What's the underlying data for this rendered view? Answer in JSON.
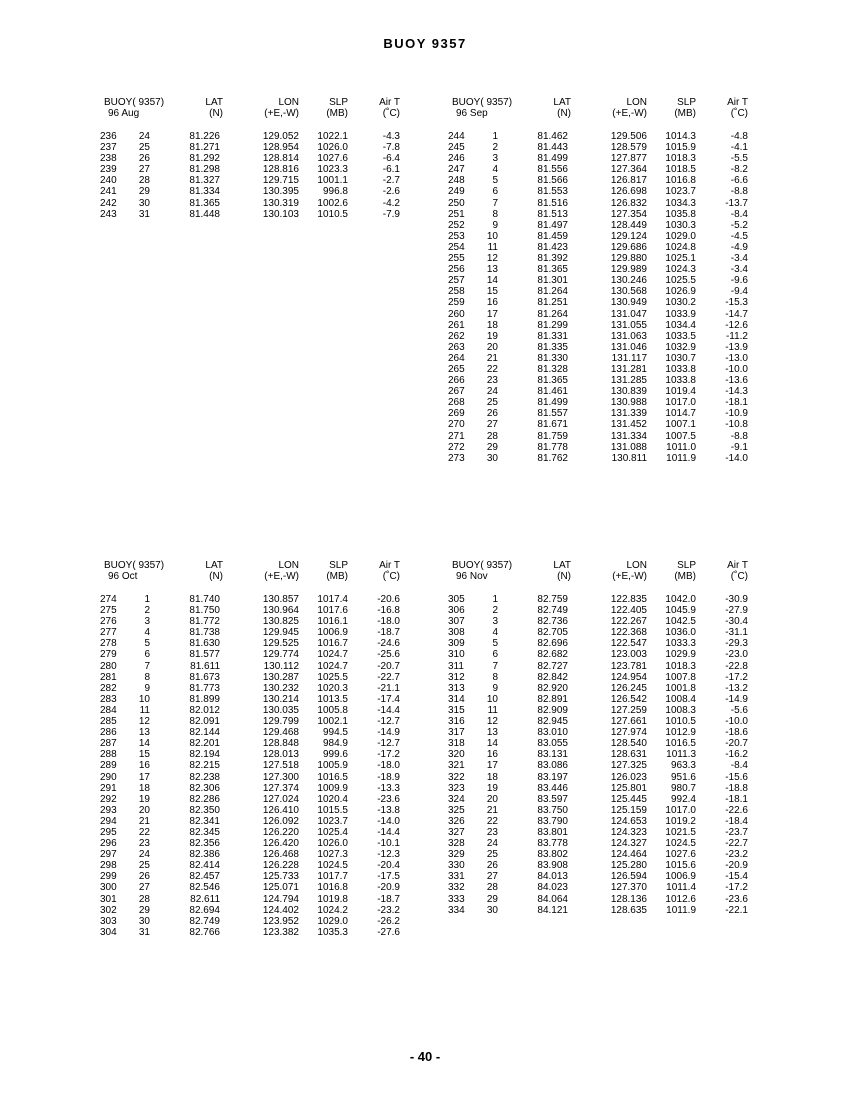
{
  "title": "BUOY 9357",
  "page_number": "- 40 -",
  "headers": {
    "buoy": "BUOY( 9357)",
    "lat": "LAT",
    "lat_unit": "(N)",
    "lon": "LON",
    "lon_unit": "(+E,-W)",
    "slp": "SLP",
    "slp_unit": "(MB)",
    "airt": "Air T",
    "airt_unit": "(˚C)"
  },
  "tables": [
    {
      "period": "96 Aug",
      "rows": [
        [
          "236",
          "24",
          "81.226",
          "129.052",
          "1022.1",
          "-4.3"
        ],
        [
          "237",
          "25",
          "81.271",
          "128.954",
          "1026.0",
          "-7.8"
        ],
        [
          "238",
          "26",
          "81.292",
          "128.814",
          "1027.6",
          "-6.4"
        ],
        [
          "239",
          "27",
          "81.298",
          "128.816",
          "1023.3",
          "-6.1"
        ],
        [
          "240",
          "28",
          "81.327",
          "129.715",
          "1001.1",
          "-2.7"
        ],
        [
          "241",
          "29",
          "81.334",
          "130.395",
          "996.8",
          "-2.6"
        ],
        [
          "242",
          "30",
          "81.365",
          "130.319",
          "1002.6",
          "-4.2"
        ],
        [
          "243",
          "31",
          "81.448",
          "130.103",
          "1010.5",
          "-7.9"
        ]
      ]
    },
    {
      "period": "96 Sep",
      "rows": [
        [
          "244",
          "1",
          "81.462",
          "129.506",
          "1014.3",
          "-4.8"
        ],
        [
          "245",
          "2",
          "81.443",
          "128.579",
          "1015.9",
          "-4.1"
        ],
        [
          "246",
          "3",
          "81.499",
          "127.877",
          "1018.3",
          "-5.5"
        ],
        [
          "247",
          "4",
          "81.556",
          "127.364",
          "1018.5",
          "-8.2"
        ],
        [
          "248",
          "5",
          "81.566",
          "126.817",
          "1016.8",
          "-6.6"
        ],
        [
          "249",
          "6",
          "81.553",
          "126.698",
          "1023.7",
          "-8.8"
        ],
        [
          "250",
          "7",
          "81.516",
          "126.832",
          "1034.3",
          "-13.7"
        ],
        [
          "251",
          "8",
          "81.513",
          "127.354",
          "1035.8",
          "-8.4"
        ],
        [
          "252",
          "9",
          "81.497",
          "128.449",
          "1030.3",
          "-5.2"
        ],
        [
          "253",
          "10",
          "81.459",
          "129.124",
          "1029.0",
          "-4.5"
        ],
        [
          "254",
          "11",
          "81.423",
          "129.686",
          "1024.8",
          "-4.9"
        ],
        [
          "255",
          "12",
          "81.392",
          "129.880",
          "1025.1",
          "-3.4"
        ],
        [
          "256",
          "13",
          "81.365",
          "129.989",
          "1024.3",
          "-3.4"
        ],
        [
          "257",
          "14",
          "81.301",
          "130.246",
          "1025.5",
          "-9.6"
        ],
        [
          "258",
          "15",
          "81.264",
          "130.568",
          "1026.9",
          "-9.4"
        ],
        [
          "259",
          "16",
          "81.251",
          "130.949",
          "1030.2",
          "-15.3"
        ],
        [
          "260",
          "17",
          "81.264",
          "131.047",
          "1033.9",
          "-14.7"
        ],
        [
          "261",
          "18",
          "81.299",
          "131.055",
          "1034.4",
          "-12.6"
        ],
        [
          "262",
          "19",
          "81.331",
          "131.063",
          "1033.5",
          "-11.2"
        ],
        [
          "263",
          "20",
          "81.335",
          "131.046",
          "1032.9",
          "-13.9"
        ],
        [
          "264",
          "21",
          "81.330",
          "131.117",
          "1030.7",
          "-13.0"
        ],
        [
          "265",
          "22",
          "81.328",
          "131.281",
          "1033.8",
          "-10.0"
        ],
        [
          "266",
          "23",
          "81.365",
          "131.285",
          "1033.8",
          "-13.6"
        ],
        [
          "267",
          "24",
          "81.461",
          "130.839",
          "1019.4",
          "-14.3"
        ],
        [
          "268",
          "25",
          "81.499",
          "130.988",
          "1017.0",
          "-18.1"
        ],
        [
          "269",
          "26",
          "81.557",
          "131.339",
          "1014.7",
          "-10.9"
        ],
        [
          "270",
          "27",
          "81.671",
          "131.452",
          "1007.1",
          "-10.8"
        ],
        [
          "271",
          "28",
          "81.759",
          "131.334",
          "1007.5",
          "-8.8"
        ],
        [
          "272",
          "29",
          "81.778",
          "131.088",
          "1011.0",
          "-9.1"
        ],
        [
          "273",
          "30",
          "81.762",
          "130.811",
          "1011.9",
          "-14.0"
        ]
      ]
    },
    {
      "period": "96 Oct",
      "rows": [
        [
          "274",
          "1",
          "81.740",
          "130.857",
          "1017.4",
          "-20.6"
        ],
        [
          "275",
          "2",
          "81.750",
          "130.964",
          "1017.6",
          "-16.8"
        ],
        [
          "276",
          "3",
          "81.772",
          "130.825",
          "1016.1",
          "-18.0"
        ],
        [
          "277",
          "4",
          "81.738",
          "129.945",
          "1006.9",
          "-18.7"
        ],
        [
          "278",
          "5",
          "81.630",
          "129.525",
          "1016.7",
          "-24.6"
        ],
        [
          "279",
          "6",
          "81.577",
          "129.774",
          "1024.7",
          "-25.6"
        ],
        [
          "280",
          "7",
          "81.611",
          "130.112",
          "1024.7",
          "-20.7"
        ],
        [
          "281",
          "8",
          "81.673",
          "130.287",
          "1025.5",
          "-22.7"
        ],
        [
          "282",
          "9",
          "81.773",
          "130.232",
          "1020.3",
          "-21.1"
        ],
        [
          "283",
          "10",
          "81.899",
          "130.214",
          "1013.5",
          "-17.4"
        ],
        [
          "284",
          "11",
          "82.012",
          "130.035",
          "1005.8",
          "-14.4"
        ],
        [
          "285",
          "12",
          "82.091",
          "129.799",
          "1002.1",
          "-12.7"
        ],
        [
          "286",
          "13",
          "82.144",
          "129.468",
          "994.5",
          "-14.9"
        ],
        [
          "287",
          "14",
          "82.201",
          "128.848",
          "984.9",
          "-12.7"
        ],
        [
          "288",
          "15",
          "82.194",
          "128.013",
          "999.6",
          "-17.2"
        ],
        [
          "289",
          "16",
          "82.215",
          "127.518",
          "1005.9",
          "-18.0"
        ],
        [
          "290",
          "17",
          "82.238",
          "127.300",
          "1016.5",
          "-18.9"
        ],
        [
          "291",
          "18",
          "82.306",
          "127.374",
          "1009.9",
          "-13.3"
        ],
        [
          "292",
          "19",
          "82.286",
          "127.024",
          "1020.4",
          "-23.6"
        ],
        [
          "293",
          "20",
          "82.350",
          "126.410",
          "1015.5",
          "-13.8"
        ],
        [
          "294",
          "21",
          "82.341",
          "126.092",
          "1023.7",
          "-14.0"
        ],
        [
          "295",
          "22",
          "82.345",
          "126.220",
          "1025.4",
          "-14.4"
        ],
        [
          "296",
          "23",
          "82.356",
          "126.420",
          "1026.0",
          "-10.1"
        ],
        [
          "297",
          "24",
          "82.386",
          "126.468",
          "1027.3",
          "-12.3"
        ],
        [
          "298",
          "25",
          "82.414",
          "126.228",
          "1024.5",
          "-20.4"
        ],
        [
          "299",
          "26",
          "82.457",
          "125.733",
          "1017.7",
          "-17.5"
        ],
        [
          "300",
          "27",
          "82.546",
          "125.071",
          "1016.8",
          "-20.9"
        ],
        [
          "301",
          "28",
          "82.611",
          "124.794",
          "1019.8",
          "-18.7"
        ],
        [
          "302",
          "29",
          "82.694",
          "124.402",
          "1024.2",
          "-23.2"
        ],
        [
          "303",
          "30",
          "82.749",
          "123.952",
          "1029.0",
          "-26.2"
        ],
        [
          "304",
          "31",
          "82.766",
          "123.382",
          "1035.3",
          "-27.6"
        ]
      ]
    },
    {
      "period": "96 Nov",
      "rows": [
        [
          "305",
          "1",
          "82.759",
          "122.835",
          "1042.0",
          "-30.9"
        ],
        [
          "306",
          "2",
          "82.749",
          "122.405",
          "1045.9",
          "-27.9"
        ],
        [
          "307",
          "3",
          "82.736",
          "122.267",
          "1042.5",
          "-30.4"
        ],
        [
          "308",
          "4",
          "82.705",
          "122.368",
          "1036.0",
          "-31.1"
        ],
        [
          "309",
          "5",
          "82.696",
          "122.547",
          "1033.3",
          "-29.3"
        ],
        [
          "310",
          "6",
          "82.682",
          "123.003",
          "1029.9",
          "-23.0"
        ],
        [
          "311",
          "7",
          "82.727",
          "123.781",
          "1018.3",
          "-22.8"
        ],
        [
          "312",
          "8",
          "82.842",
          "124.954",
          "1007.8",
          "-17.2"
        ],
        [
          "313",
          "9",
          "82.920",
          "126.245",
          "1001.8",
          "-13.2"
        ],
        [
          "314",
          "10",
          "82.891",
          "126.542",
          "1008.4",
          "-14.9"
        ],
        [
          "315",
          "11",
          "82.909",
          "127.259",
          "1008.3",
          "-5.6"
        ],
        [
          "316",
          "12",
          "82.945",
          "127.661",
          "1010.5",
          "-10.0"
        ],
        [
          "317",
          "13",
          "83.010",
          "127.974",
          "1012.9",
          "-18.6"
        ],
        [
          "318",
          "14",
          "83.055",
          "128.540",
          "1016.5",
          "-20.7"
        ],
        [
          "320",
          "16",
          "83.131",
          "128.631",
          "1011.3",
          "-16.2"
        ],
        [
          "321",
          "17",
          "83.086",
          "127.325",
          "963.3",
          "-8.4"
        ],
        [
          "322",
          "18",
          "83.197",
          "126.023",
          "951.6",
          "-15.6"
        ],
        [
          "323",
          "19",
          "83.446",
          "125.801",
          "980.7",
          "-18.8"
        ],
        [
          "324",
          "20",
          "83.597",
          "125.445",
          "992.4",
          "-18.1"
        ],
        [
          "325",
          "21",
          "83.750",
          "125.159",
          "1017.0",
          "-22.6"
        ],
        [
          "326",
          "22",
          "83.790",
          "124.653",
          "1019.2",
          "-18.4"
        ],
        [
          "327",
          "23",
          "83.801",
          "124.323",
          "1021.5",
          "-23.7"
        ],
        [
          "328",
          "24",
          "83.778",
          "124.327",
          "1024.5",
          "-22.7"
        ],
        [
          "329",
          "25",
          "83.802",
          "124.464",
          "1027.6",
          "-23.2"
        ],
        [
          "330",
          "26",
          "83.908",
          "125.280",
          "1015.6",
          "-20.9"
        ],
        [
          "331",
          "27",
          "84.013",
          "126.594",
          "1006.9",
          "-15.4"
        ],
        [
          "332",
          "28",
          "84.023",
          "127.370",
          "1011.4",
          "-17.2"
        ],
        [
          "333",
          "29",
          "84.064",
          "128.136",
          "1012.6",
          "-23.6"
        ],
        [
          "334",
          "30",
          "84.121",
          "128.635",
          "1011.9",
          "-22.1"
        ]
      ]
    }
  ]
}
